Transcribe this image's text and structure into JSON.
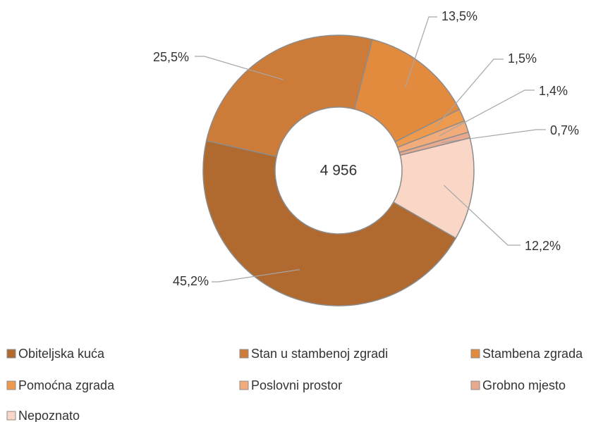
{
  "chart_data": {
    "type": "donut",
    "categories": [
      "Obiteljska kuća",
      "Stan u stambenoj zgradi",
      "Stambena zgrada",
      "Pomoćna zgrada",
      "Poslovni prostor",
      "Grobno mjesto",
      "Nepoznato"
    ],
    "values": [
      45.2,
      25.5,
      13.5,
      1.5,
      1.4,
      0.7,
      12.2
    ],
    "value_labels": [
      "45,2%",
      "25,5%",
      "13,5%",
      "1,5%",
      "1,4%",
      "0,7%",
      "12,2%"
    ],
    "colors": [
      "#b0692f",
      "#cd7b38",
      "#e28a3e",
      "#ee9a4e",
      "#f2ab7a",
      "#e8a98e",
      "#f9d6c5"
    ],
    "center_label": "4 956",
    "legend": "bottom"
  }
}
